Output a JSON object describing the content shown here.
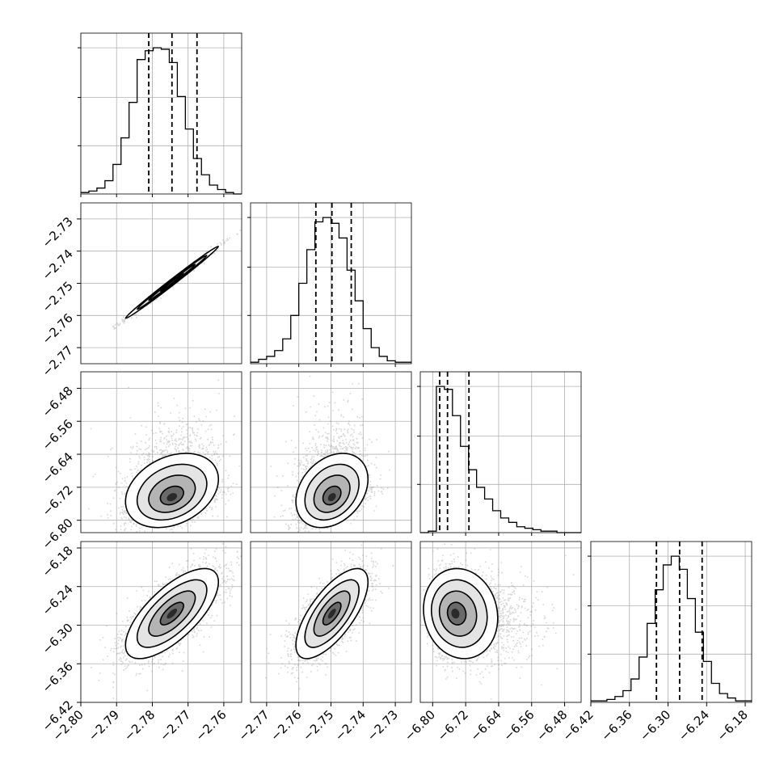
{
  "chart_data": {
    "type": "corner",
    "n_params": 4,
    "grid": true,
    "ranges": [
      [
        -2.8,
        -2.755
      ],
      [
        -2.775,
        -2.725
      ],
      [
        -6.83,
        -6.44
      ],
      [
        -6.42,
        -6.17
      ]
    ],
    "xticks": [
      [
        -2.8,
        -2.79,
        -2.78,
        -2.77,
        -2.76
      ],
      [
        -2.77,
        -2.76,
        -2.75,
        -2.74,
        -2.73
      ],
      [
        -6.8,
        -6.72,
        -6.64,
        -6.56,
        -6.48
      ],
      [
        -6.42,
        -6.36,
        -6.3,
        -6.24,
        -6.18
      ]
    ],
    "xtick_labels": [
      [
        "−2.80",
        "−2.79",
        "−2.78",
        "−2.77",
        "−2.76"
      ],
      [
        "−2.77",
        "−2.76",
        "−2.75",
        "−2.74",
        "−2.73"
      ],
      [
        "−6.80",
        "−6.72",
        "−6.64",
        "−6.56",
        "−6.48"
      ],
      [
        "−6.42",
        "−6.36",
        "−6.30",
        "−6.24",
        "−6.18"
      ]
    ],
    "yticks": [
      [],
      [
        -2.73,
        -2.74,
        -2.75,
        -2.76,
        -2.77
      ],
      [
        -6.48,
        -6.56,
        -6.64,
        -6.72,
        -6.8
      ],
      [
        -6.18,
        -6.24,
        -6.3,
        -6.36,
        -6.42
      ]
    ],
    "ytick_labels": [
      [],
      [
        "−2.73",
        "−2.74",
        "−2.75",
        "−2.76",
        "−2.77"
      ],
      [
        "−6.48",
        "−6.56",
        "−6.64",
        "−6.72",
        "−6.80"
      ],
      [
        "−6.18",
        "−6.24",
        "−6.30",
        "−6.36",
        "−6.42"
      ]
    ],
    "quantiles": [
      [
        -2.781,
        -2.7745,
        -2.7675
      ],
      [
        -2.7547,
        -2.7497,
        -2.7437
      ],
      [
        -6.783,
        -6.764,
        -6.712
      ],
      [
        -6.318,
        -6.282,
        -6.247
      ]
    ],
    "histograms": [
      {
        "edges_min": -2.8,
        "edges_max": -2.755,
        "counts": [
          1,
          2,
          4,
          9,
          20,
          38,
          62,
          91,
          97,
          99,
          98,
          89,
          66,
          44,
          24,
          13,
          6,
          3,
          1,
          0
        ]
      },
      {
        "edges_min": -2.775,
        "edges_max": -2.725,
        "counts": [
          1,
          3,
          5,
          9,
          17,
          33,
          55,
          78,
          97,
          100,
          96,
          86,
          64,
          43,
          24,
          11,
          5,
          2,
          1,
          1
        ]
      },
      {
        "edges_min": -6.83,
        "edges_max": -6.44,
        "counts": [
          0,
          1,
          100,
          98,
          80,
          59,
          43,
          31,
          23,
          15,
          10,
          7,
          4,
          3,
          2,
          1,
          1,
          0,
          0,
          0
        ]
      },
      {
        "edges_min": -6.42,
        "edges_max": -6.17,
        "counts": [
          1,
          1,
          2,
          4,
          8,
          16,
          31,
          54,
          77,
          94,
          100,
          91,
          71,
          48,
          28,
          13,
          6,
          3,
          1,
          1
        ]
      }
    ],
    "pairs": [
      {
        "row": 1,
        "col": 0,
        "mean": [
          -2.7745,
          -2.7497
        ],
        "std": [
          0.0065,
          0.0056
        ],
        "corr": 0.995,
        "skew": [
          0,
          0
        ]
      },
      {
        "row": 2,
        "col": 0,
        "mean": [
          -2.7745,
          -6.748
        ],
        "std": [
          0.0065,
          0.045
        ],
        "corr": 0.3,
        "skew": [
          0,
          1
        ]
      },
      {
        "row": 2,
        "col": 1,
        "mean": [
          -2.7497,
          -6.748
        ],
        "std": [
          0.0056,
          0.045
        ],
        "corr": 0.3,
        "skew": [
          0,
          1
        ]
      },
      {
        "row": 3,
        "col": 0,
        "mean": [
          -2.7745,
          -6.282
        ],
        "std": [
          0.0065,
          0.035
        ],
        "corr": 0.7,
        "skew": [
          0,
          0
        ]
      },
      {
        "row": 3,
        "col": 1,
        "mean": [
          -2.7497,
          -6.282
        ],
        "std": [
          0.0056,
          0.035
        ],
        "corr": 0.7,
        "skew": [
          0,
          0
        ]
      },
      {
        "row": 3,
        "col": 2,
        "mean": [
          -6.748,
          -6.282
        ],
        "std": [
          0.045,
          0.035
        ],
        "corr": -0.1,
        "skew": [
          1,
          0
        ]
      }
    ]
  }
}
